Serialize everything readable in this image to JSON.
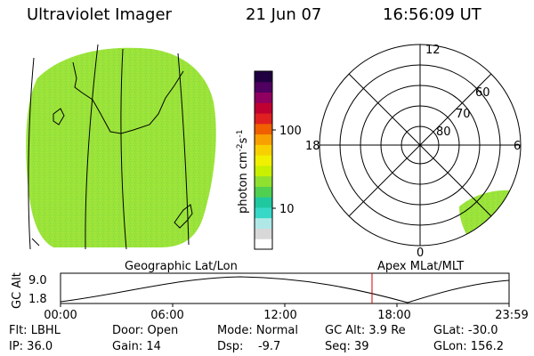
{
  "header": {
    "title": "Ultraviolet Imager",
    "date": "21 Jun 07",
    "time": "16:56:09 UT"
  },
  "colorbar": {
    "label": "photon cm",
    "label_sup1": "-2",
    "label_s": "s",
    "label_sup2": "-1",
    "tick_100": "100",
    "tick_10": "10",
    "colors": [
      "#ffffff",
      "#d8d8d8",
      "#b0e8e8",
      "#38d8c8",
      "#20c8a0",
      "#50d050",
      "#90e030",
      "#c8f000",
      "#f0f000",
      "#f8d000",
      "#f8a000",
      "#f06000",
      "#e02020",
      "#c00030",
      "#900060",
      "#500060",
      "#200040"
    ]
  },
  "polar": {
    "labels": {
      "noon": "12",
      "dusk": "18",
      "dawn": "6",
      "midnight": "0"
    },
    "lat_labels": [
      "60",
      "70",
      "80"
    ]
  },
  "altitude_panel": {
    "left_title": "Geographic Lat/Lon",
    "right_title": "Apex MLat/MLT",
    "ylabel": "GC Alt",
    "ytick_top": "9.0",
    "ytick_bottom": "1.8",
    "xticks": [
      "00:00",
      "06:00",
      "12:00",
      "18:00",
      "23:59"
    ],
    "current_time_marker_color": "#cc0000"
  },
  "info": {
    "flt": "Flt: LBHL",
    "door": "Door: Open",
    "mode": "Mode: Normal",
    "gc_alt": "GC Alt: 3.9 Re",
    "glat": "GLat: -30.0",
    "ip": "IP: 36.0",
    "gain": "Gain: 14",
    "dsp": "Dsp:    -9.7",
    "seq": "Seq: 39",
    "glon": "GLon: 156.2"
  },
  "colors": {
    "emission_green": "#9ae33a"
  }
}
